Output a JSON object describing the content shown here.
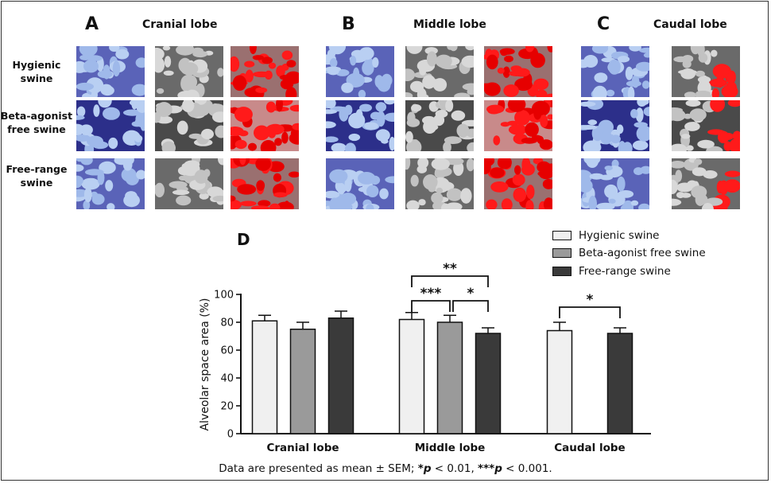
{
  "panels": [
    {
      "letter": "A",
      "title": "Cranial lobe"
    },
    {
      "letter": "B",
      "title": "Middle lobe"
    },
    {
      "letter": "C",
      "title": "Caudal lobe"
    }
  ],
  "row_labels": [
    {
      "line1": "Hygienic",
      "line2": "swine"
    },
    {
      "line1": "Beta-agonist",
      "line2": "free swine"
    },
    {
      "line1": "Free-range",
      "line2": "swine"
    }
  ],
  "chart_letter": "D",
  "legend": [
    {
      "label": "Hygienic swine",
      "color": "#f0f0f0"
    },
    {
      "label": "Beta-agonist free swine",
      "color": "#9a9a9a"
    },
    {
      "label": "Free-range swine",
      "color": "#3a3a3a"
    }
  ],
  "footnote": {
    "prefix": "Data are presented as mean ± SEM; ",
    "sig1": "*p",
    "mid": " < 0.01, ",
    "sig2": "***p",
    "suffix": " < 0.001."
  },
  "chart_data": {
    "type": "bar",
    "categories": [
      "Cranial lobe",
      "Middle lobe",
      "Caudal lobe"
    ],
    "ylabel": "Alveolar space area (%)",
    "ylim": [
      0,
      100
    ],
    "yticks": [
      0,
      20,
      40,
      60,
      80,
      100
    ],
    "series": [
      {
        "name": "Hygienic swine",
        "color": "#f0f0f0",
        "values": [
          81,
          82,
          74
        ],
        "errors": [
          4,
          5,
          6
        ]
      },
      {
        "name": "Beta-agonist free swine",
        "color": "#9a9a9a",
        "values": [
          75,
          80,
          null
        ],
        "errors": [
          5,
          5,
          null
        ]
      },
      {
        "name": "Free-range swine",
        "color": "#3a3a3a",
        "values": [
          83,
          72,
          72
        ],
        "errors": [
          5,
          4,
          4
        ]
      }
    ],
    "significance": [
      {
        "category": "Middle lobe",
        "from": "Hygienic swine",
        "to": "Beta-agonist free swine",
        "label": "***"
      },
      {
        "category": "Middle lobe",
        "from": "Beta-agonist free swine",
        "to": "Free-range swine",
        "label": "*"
      },
      {
        "category": "Middle lobe",
        "from": "Hygienic swine",
        "to": "Free-range swine",
        "label": "**"
      },
      {
        "category": "Caudal lobe",
        "from": "Hygienic swine",
        "to": "Free-range swine",
        "label": "*"
      }
    ],
    "legend_position": "top-right"
  }
}
